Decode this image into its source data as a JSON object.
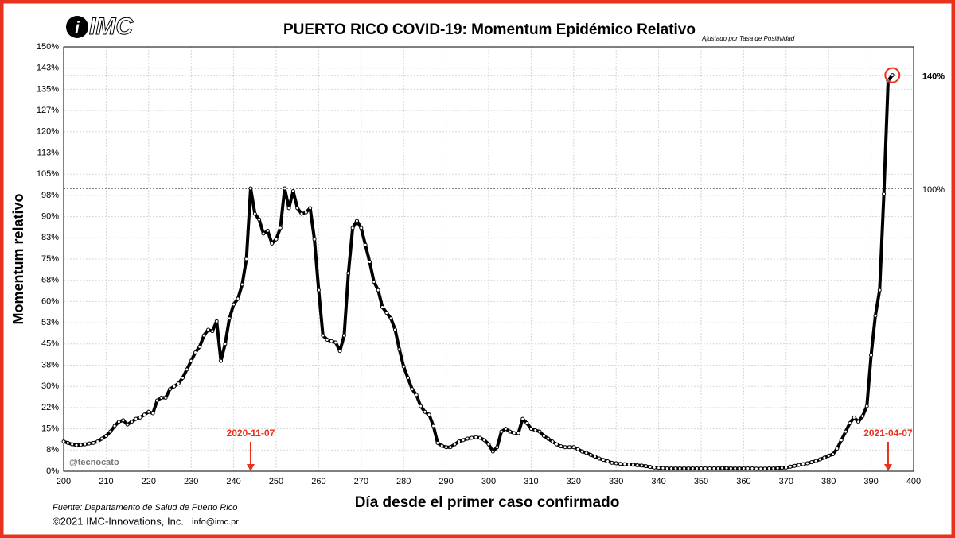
{
  "chart_data": {
    "type": "line",
    "title": "PUERTO RICO COVID-19: Momentum Epidémico Relativo",
    "subtitle": "Ajustado por Tasa de Positividad",
    "logo": "IMC",
    "x_label": "Día desde el primer caso confirmado",
    "y_label": "Momentum relativo",
    "source": "Fuente: Departamento de Salud de Puerto Rico",
    "copyright": "©2021 IMC-Innovations, Inc.",
    "email": "info@imc.pr",
    "watermark": "@tecnocato",
    "color": "#000000",
    "grid": true,
    "xlim": [
      200,
      400
    ],
    "xticks": [
      200,
      210,
      220,
      230,
      240,
      250,
      260,
      270,
      280,
      290,
      300,
      310,
      320,
      330,
      340,
      350,
      360,
      370,
      380,
      390,
      400
    ],
    "ylim": [
      0,
      150
    ],
    "yticks": [
      {
        "value": 0,
        "label": "0%"
      },
      {
        "value": 7.5,
        "label": "8%"
      },
      {
        "value": 15,
        "label": "15%"
      },
      {
        "value": 22.5,
        "label": "22%"
      },
      {
        "value": 30,
        "label": "30%"
      },
      {
        "value": 37.5,
        "label": "38%"
      },
      {
        "value": 45,
        "label": "45%"
      },
      {
        "value": 52.5,
        "label": "53%"
      },
      {
        "value": 60,
        "label": "60%"
      },
      {
        "value": 67.5,
        "label": "68%"
      },
      {
        "value": 75,
        "label": "75%"
      },
      {
        "value": 82.5,
        "label": "83%"
      },
      {
        "value": 90,
        "label": "90%"
      },
      {
        "value": 97.5,
        "label": "98%"
      },
      {
        "value": 105,
        "label": "105%"
      },
      {
        "value": 112.5,
        "label": "113%"
      },
      {
        "value": 120,
        "label": "120%"
      },
      {
        "value": 127.5,
        "label": "127%"
      },
      {
        "value": 135,
        "label": "135%"
      },
      {
        "value": 142.5,
        "label": "143%"
      },
      {
        "value": 150,
        "label": "150%"
      }
    ],
    "reference_lines": [
      {
        "value": 100,
        "label": "100%"
      },
      {
        "value": 140,
        "label": "140%"
      }
    ],
    "markers": [
      {
        "x": 244,
        "label": "2020-11-07"
      },
      {
        "x": 394,
        "label": "2021-04-07"
      }
    ],
    "x": [
      200,
      201,
      202,
      203,
      204,
      205,
      206,
      207,
      208,
      209,
      210,
      211,
      212,
      213,
      214,
      215,
      216,
      217,
      218,
      219,
      220,
      221,
      222,
      223,
      224,
      225,
      226,
      227,
      228,
      229,
      230,
      231,
      232,
      233,
      234,
      235,
      236,
      237,
      238,
      239,
      240,
      241,
      242,
      243,
      244,
      245,
      246,
      247,
      248,
      249,
      250,
      251,
      252,
      253,
      254,
      255,
      256,
      257,
      258,
      259,
      260,
      261,
      262,
      263,
      264,
      265,
      266,
      267,
      268,
      269,
      270,
      271,
      272,
      273,
      274,
      275,
      276,
      277,
      278,
      279,
      280,
      281,
      282,
      283,
      284,
      285,
      286,
      287,
      288,
      289,
      290,
      291,
      292,
      293,
      294,
      295,
      296,
      297,
      298,
      299,
      300,
      301,
      302,
      303,
      304,
      305,
      306,
      307,
      308,
      309,
      310,
      311,
      312,
      313,
      314,
      315,
      316,
      317,
      318,
      319,
      320,
      321,
      322,
      323,
      324,
      325,
      326,
      327,
      328,
      329,
      330,
      331,
      332,
      333,
      334,
      335,
      336,
      337,
      338,
      339,
      340,
      341,
      342,
      343,
      344,
      345,
      346,
      347,
      348,
      349,
      350,
      351,
      352,
      353,
      354,
      355,
      356,
      357,
      358,
      359,
      360,
      361,
      362,
      363,
      364,
      365,
      366,
      367,
      368,
      369,
      370,
      371,
      372,
      373,
      374,
      375,
      376,
      377,
      378,
      379,
      380,
      381,
      382,
      383,
      384,
      385,
      386,
      387,
      388,
      389,
      390,
      391,
      392,
      393,
      394,
      395
    ],
    "values": [
      10.5,
      10,
      9.5,
      9.2,
      9.3,
      9.5,
      9.8,
      10,
      10.5,
      11.5,
      12.5,
      14,
      16,
      17.5,
      18,
      16.5,
      17.5,
      18.5,
      19,
      20,
      21,
      20.5,
      25,
      26,
      26,
      29,
      30,
      31,
      33,
      36,
      39,
      42,
      44,
      48,
      50,
      49.5,
      53,
      39,
      45,
      54,
      59,
      61,
      66,
      75,
      100,
      91,
      89,
      84,
      85,
      80.5,
      82,
      86,
      100,
      93,
      99,
      93,
      91,
      91.5,
      93,
      82,
      64,
      48,
      46.5,
      46,
      45.5,
      42.5,
      48,
      70,
      86,
      88.5,
      86,
      80,
      74,
      67,
      64,
      58,
      56,
      54,
      50,
      43,
      37,
      33,
      29,
      27,
      23,
      21,
      20,
      16,
      10,
      9,
      8.5,
      8.5,
      9.5,
      10.5,
      11,
      11.5,
      11.8,
      12,
      11.8,
      11,
      9.5,
      7,
      8.5,
      14,
      15,
      14,
      13.5,
      13.5,
      18.5,
      17,
      15,
      14.5,
      14,
      12.5,
      11.5,
      10.5,
      9.5,
      8.8,
      8.5,
      8.5,
      8.5,
      7.8,
      7,
      6.5,
      5.8,
      5.2,
      4.5,
      4,
      3.5,
      3,
      2.8,
      2.6,
      2.5,
      2.4,
      2.3,
      2.1,
      2,
      1.8,
      1.5,
      1.3,
      1.2,
      1.1,
      1,
      1,
      1,
      1,
      1,
      1,
      1,
      1,
      1,
      1,
      1,
      1,
      1,
      1.1,
      1.1,
      1,
      1,
      1,
      1,
      1,
      1,
      0.9,
      0.9,
      0.9,
      1,
      1,
      1.1,
      1.2,
      1.3,
      1.6,
      1.9,
      2.2,
      2.5,
      2.8,
      3.2,
      3.6,
      4.2,
      4.8,
      5.5,
      6,
      8,
      11,
      14,
      17,
      19,
      17.5,
      19.5,
      23,
      41,
      55,
      64,
      98,
      138,
      140
    ]
  }
}
